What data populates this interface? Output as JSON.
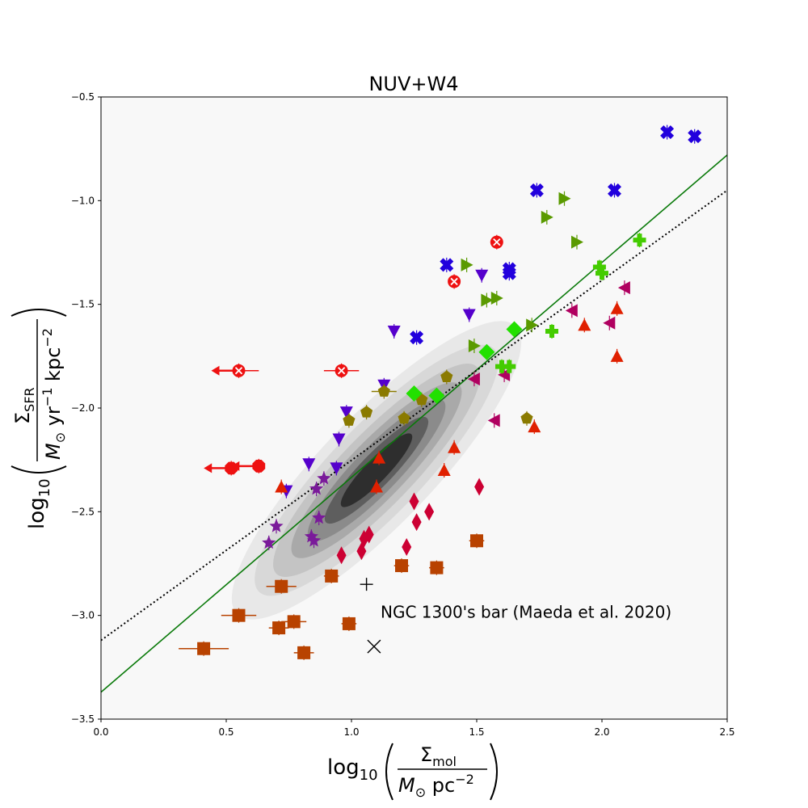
{
  "chart_data": {
    "type": "scatter",
    "title": "NUV+W4",
    "xlabel": {
      "prefix": "log",
      "sub": "10",
      "num": "Σ",
      "num_sub": "mol",
      "den": "M",
      "den_sub": "⊙",
      "den_rest": " pc",
      "den_sup": "−2"
    },
    "ylabel": {
      "prefix": "log",
      "sub": "10",
      "num": "Σ",
      "num_sub": "SFR",
      "den": "M",
      "den_sub": "⊙",
      "den_rest": " yr",
      "den_sup1": "−1",
      "den_rest2": " kpc",
      "den_sup2": "−2"
    },
    "xlim": [
      0.0,
      2.5
    ],
    "ylim": [
      -3.5,
      -0.5
    ],
    "xticks": [
      0.0,
      0.5,
      1.0,
      1.5,
      2.0,
      2.5
    ],
    "xtick_labels": [
      "0.0",
      "0.5",
      "1.0",
      "1.5",
      "2.0",
      "2.5"
    ],
    "yticks": [
      -3.5,
      -3.0,
      -2.5,
      -2.0,
      -1.5,
      -1.0,
      -0.5
    ],
    "ytick_labels": [
      "−3.5",
      "−3.0",
      "−2.5",
      "−2.0",
      "−1.5",
      "−1.0",
      "−0.5"
    ],
    "grid": false,
    "background_color": "#f8f8f8",
    "annotation": {
      "text": "NGC 1300's bar (Maeda et al. 2020)",
      "x": 1.1,
      "y": -2.98
    },
    "special_points": [
      {
        "marker": "plus",
        "x": 1.06,
        "y": -2.85,
        "color": "#000000"
      },
      {
        "marker": "x",
        "x": 1.09,
        "y": -3.15,
        "color": "#000000"
      }
    ],
    "fit_lines": [
      {
        "style": "solid",
        "color": "#0a7a0a",
        "x": [
          0.0,
          2.5
        ],
        "y": [
          -3.37,
          -0.78
        ]
      },
      {
        "style": "dotted",
        "color": "#000000",
        "x": [
          0.0,
          2.5
        ],
        "y": [
          -3.12,
          -0.95
        ]
      }
    ],
    "density_contours": {
      "center": [
        1.1,
        -2.3
      ],
      "angle_deg": 46,
      "semi_axes": [
        [
          1.6,
          0.44
        ],
        [
          1.35,
          0.36
        ],
        [
          1.15,
          0.29
        ],
        [
          0.95,
          0.23
        ],
        [
          0.77,
          0.18
        ],
        [
          0.58,
          0.13
        ],
        [
          0.4,
          0.09
        ]
      ],
      "colors": [
        "#e8e8e8",
        "#d8d8d8",
        "#c4c4c4",
        "#a9a9a9",
        "#8b8b8b",
        "#5e5e5e",
        "#2e2e2e"
      ]
    },
    "series": [
      {
        "marker": "square",
        "color": "#b84200",
        "points": [
          {
            "x": 0.41,
            "y": -3.16,
            "xerr": 0.1
          },
          {
            "x": 0.55,
            "y": -3.0,
            "xerr": 0.07
          },
          {
            "x": 0.71,
            "y": -3.06,
            "xerr": 0.04
          },
          {
            "x": 0.72,
            "y": -2.86,
            "xerr": 0.06
          },
          {
            "x": 0.77,
            "y": -3.03,
            "xerr": 0.05
          },
          {
            "x": 0.81,
            "y": -3.18,
            "xerr": 0.04
          },
          {
            "x": 0.92,
            "y": -2.81,
            "xerr": 0.03
          },
          {
            "x": 0.99,
            "y": -3.04,
            "xerr": 0.03
          },
          {
            "x": 1.2,
            "y": -2.76,
            "xerr": 0.03
          },
          {
            "x": 1.34,
            "y": -2.77,
            "xerr": 0.03
          },
          {
            "x": 1.5,
            "y": -2.64,
            "xerr": 0.03
          }
        ]
      },
      {
        "marker": "diamond_thin",
        "color": "#cc0033",
        "points": [
          {
            "x": 0.96,
            "y": -2.71
          },
          {
            "x": 1.04,
            "y": -2.69
          },
          {
            "x": 1.05,
            "y": -2.63
          },
          {
            "x": 1.07,
            "y": -2.61
          },
          {
            "x": 1.22,
            "y": -2.67
          },
          {
            "x": 1.25,
            "y": -2.45
          },
          {
            "x": 1.26,
            "y": -2.55
          },
          {
            "x": 1.31,
            "y": -2.5
          },
          {
            "x": 1.51,
            "y": -2.38
          }
        ]
      },
      {
        "marker": "star",
        "color": "#7a1a9a",
        "points": [
          {
            "x": 0.67,
            "y": -2.65
          },
          {
            "x": 0.7,
            "y": -2.57
          },
          {
            "x": 0.84,
            "y": -2.62
          },
          {
            "x": 0.85,
            "y": -2.64
          },
          {
            "x": 0.86,
            "y": -2.39
          },
          {
            "x": 0.87,
            "y": -2.53
          },
          {
            "x": 0.89,
            "y": -2.34
          }
        ]
      },
      {
        "marker": "triangle_down",
        "color": "#5500cc",
        "points": [
          {
            "x": 0.74,
            "y": -2.4
          },
          {
            "x": 0.83,
            "y": -2.27
          },
          {
            "x": 0.94,
            "y": -2.29
          },
          {
            "x": 0.95,
            "y": -2.15
          },
          {
            "x": 0.98,
            "y": -2.02
          },
          {
            "x": 1.13,
            "y": -1.89
          },
          {
            "x": 1.17,
            "y": -1.63
          },
          {
            "x": 1.47,
            "y": -1.55
          },
          {
            "x": 1.52,
            "y": -1.36
          }
        ]
      },
      {
        "marker": "pentagon",
        "color": "#8a7a00",
        "points": [
          {
            "x": 0.99,
            "y": -2.06
          },
          {
            "x": 1.06,
            "y": -2.02
          },
          {
            "x": 1.13,
            "y": -1.92,
            "xerr": 0.05
          },
          {
            "x": 1.21,
            "y": -2.05
          },
          {
            "x": 1.28,
            "y": -1.96
          },
          {
            "x": 1.38,
            "y": -1.85
          },
          {
            "x": 1.7,
            "y": -2.05
          }
        ]
      },
      {
        "marker": "diamond",
        "color": "#22e000",
        "points": [
          {
            "x": 1.25,
            "y": -1.93
          },
          {
            "x": 1.34,
            "y": -1.94
          },
          {
            "x": 1.54,
            "y": -1.73
          },
          {
            "x": 1.65,
            "y": -1.62
          }
        ]
      },
      {
        "marker": "triangle_up",
        "color": "#e02000",
        "points": [
          {
            "x": 0.72,
            "y": -2.38
          },
          {
            "x": 1.1,
            "y": -2.38
          },
          {
            "x": 1.11,
            "y": -2.24
          },
          {
            "x": 1.37,
            "y": -2.3
          },
          {
            "x": 1.41,
            "y": -2.19
          },
          {
            "x": 1.73,
            "y": -2.09
          },
          {
            "x": 1.93,
            "y": -1.6
          },
          {
            "x": 2.06,
            "y": -1.52
          },
          {
            "x": 2.06,
            "y": -1.75
          }
        ]
      },
      {
        "marker": "triangle_left",
        "color": "#b00060",
        "points": [
          {
            "x": 1.49,
            "y": -1.86
          },
          {
            "x": 1.57,
            "y": -2.06
          },
          {
            "x": 1.61,
            "y": -1.84
          },
          {
            "x": 1.88,
            "y": -1.53
          },
          {
            "x": 2.03,
            "y": -1.59
          },
          {
            "x": 2.09,
            "y": -1.42
          }
        ]
      },
      {
        "marker": "triangle_right",
        "color": "#5a9a00",
        "points": [
          {
            "x": 1.46,
            "y": -1.31
          },
          {
            "x": 1.49,
            "y": -1.7
          },
          {
            "x": 1.54,
            "y": -1.48
          },
          {
            "x": 1.58,
            "y": -1.47
          },
          {
            "x": 1.72,
            "y": -1.6
          },
          {
            "x": 1.78,
            "y": -1.08
          },
          {
            "x": 1.85,
            "y": -0.99
          },
          {
            "x": 1.9,
            "y": -1.2
          }
        ]
      },
      {
        "marker": "plus_filled",
        "color": "#44cc00",
        "points": [
          {
            "x": 1.6,
            "y": -1.8
          },
          {
            "x": 1.63,
            "y": -1.8
          },
          {
            "x": 1.8,
            "y": -1.63
          },
          {
            "x": 1.99,
            "y": -1.32
          },
          {
            "x": 2.0,
            "y": -1.35
          },
          {
            "x": 2.15,
            "y": -1.19
          }
        ]
      },
      {
        "marker": "x_filled",
        "color": "#2200dd",
        "points": [
          {
            "x": 1.26,
            "y": -1.66
          },
          {
            "x": 1.38,
            "y": -1.31
          },
          {
            "x": 1.63,
            "y": -1.33
          },
          {
            "x": 1.63,
            "y": -1.35
          },
          {
            "x": 1.74,
            "y": -0.95
          },
          {
            "x": 2.05,
            "y": -0.95
          },
          {
            "x": 2.26,
            "y": -0.67
          },
          {
            "x": 2.37,
            "y": -0.69
          }
        ]
      },
      {
        "marker": "circle_x",
        "color": "#ee1111",
        "points": [
          {
            "x": 0.55,
            "y": -1.82,
            "xerr": 0.08,
            "upper_limit_x": true
          },
          {
            "x": 0.96,
            "y": -1.82,
            "xerr": 0.07
          },
          {
            "x": 1.41,
            "y": -1.39
          },
          {
            "x": 1.58,
            "y": -1.2
          }
        ]
      },
      {
        "marker": "octagon",
        "color": "#ee1111",
        "points": [
          {
            "x": 0.52,
            "y": -2.29,
            "upper_limit_x": true
          },
          {
            "x": 0.63,
            "y": -2.28,
            "upper_limit_x": true
          }
        ]
      }
    ]
  }
}
